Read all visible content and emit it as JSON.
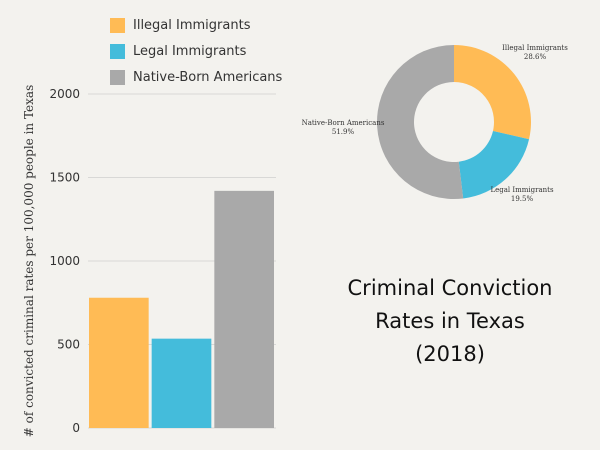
{
  "chart_data": [
    {
      "type": "bar",
      "categories": [
        "Illegal Immigrants",
        "Legal Immigrants",
        "Native-Born Americans"
      ],
      "values": [
        780,
        535,
        1420
      ],
      "colors": [
        "#ffbb55",
        "#44bcdb",
        "#a9a9a9"
      ],
      "ylabel": "# of convicted criminal rates per 100,000 people in Texas",
      "ylim": [
        0,
        2000
      ],
      "yticks": [
        0,
        500,
        1000,
        1500,
        2000
      ],
      "grid": true,
      "legend": "top"
    },
    {
      "type": "pie",
      "donut": true,
      "slices": [
        {
          "label": "Illegal Immigrants",
          "value": 28.6,
          "display": "28.6%",
          "color": "#ffbb55"
        },
        {
          "label": "Legal Immigrants",
          "value": 19.5,
          "display": "19.5%",
          "color": "#44bcdb"
        },
        {
          "label": "Native-Born Americans",
          "value": 51.9,
          "display": "51.9%",
          "color": "#a9a9a9"
        }
      ]
    }
  ],
  "title": {
    "line1": "Criminal Conviction",
    "line2": "Rates in Texas",
    "line3": "(2018)"
  }
}
